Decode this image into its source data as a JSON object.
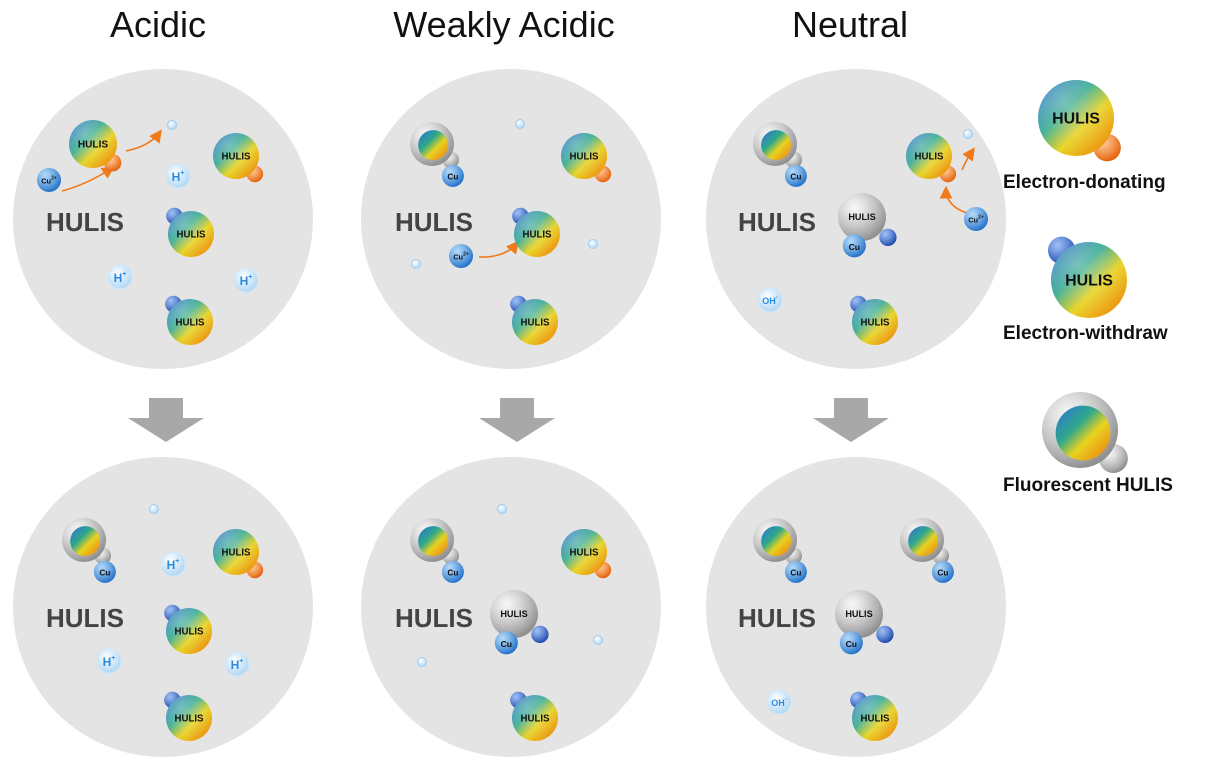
{
  "columns": [
    "Acidic",
    "Weakly Acidic",
    "Neutral"
  ],
  "text": {
    "hulis": "HULIS",
    "cu": "Cu",
    "cu2": "Cu",
    "cu2_charge": "2+",
    "h": "H",
    "h_charge": "+",
    "oh": "OH",
    "oh_charge": "-"
  },
  "legend": {
    "electron_donating": "Electron-donating",
    "electron_withdraw": "Electron-withdraw",
    "fluorescent": "Fluorescent HULIS"
  },
  "colors": {
    "circle_bg": "#e4e4e4",
    "donor_orange": "#f07a18",
    "withdraw_blue": "#2a5fc4",
    "cu_blue": "#2f7fd6",
    "ion_light_blue": "#bfe0f8",
    "arrow_gray": "#a8a8a8"
  }
}
